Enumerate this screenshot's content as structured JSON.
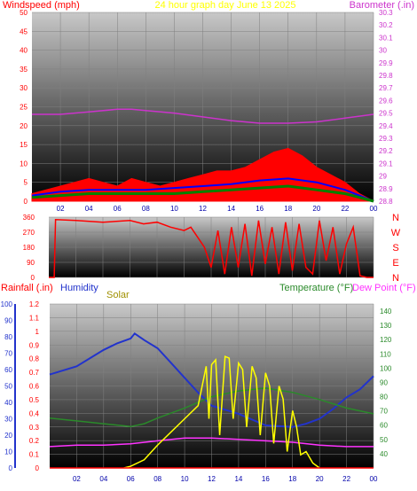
{
  "header": {
    "left_label": "Windspeed (mph)",
    "title": "24 hour graph day   June 13 2025",
    "right_label": "Barometer (.in)"
  },
  "direction_labels": [
    "N",
    "W",
    "S",
    "E",
    "N"
  ],
  "bottom_header": {
    "rainfall": "Rainfall (.in)",
    "humidity": "Humidity",
    "solar": "Solar",
    "temperature": "Temperature (°F)",
    "dewpoint": "Dew Point (°F)"
  },
  "colors": {
    "windspeed": "#ff0000",
    "gust_avg": "#0000ff",
    "wind_avg": "#008000",
    "barometer": "#cc33cc",
    "direction": "#ff0000",
    "humidity": "#2233cc",
    "solar": "#ffff00",
    "temperature": "#2a8a2a",
    "dewpoint": "#ff33ff",
    "rainfall": "#ff0000"
  },
  "chart_data": [
    {
      "type": "line",
      "name": "windspeed-barometer",
      "x_ticks": [
        "02",
        "04",
        "06",
        "08",
        "10",
        "12",
        "14",
        "16",
        "18",
        "20",
        "22",
        "00"
      ],
      "xlim": [
        0,
        24
      ],
      "ylim_left": [
        0,
        50
      ],
      "y_ticks_left": [
        0,
        5,
        10,
        15,
        20,
        25,
        30,
        35,
        40,
        45,
        50
      ],
      "ylim_right": [
        28.8,
        30.3
      ],
      "y_ticks_right": [
        "28.8",
        "28.9",
        "29",
        "29.1",
        "29.2",
        "29.3",
        "29.4",
        "29.5",
        "29.6",
        "29.7",
        "29.8",
        "29.9",
        "30",
        "30.1",
        "30.2",
        "30.3"
      ],
      "series": [
        {
          "key": "barometer",
          "axis": "right",
          "x": [
            0,
            2,
            4,
            6,
            7,
            8,
            10,
            12,
            14,
            16,
            18,
            20,
            22,
            24
          ],
          "values": [
            29.49,
            29.49,
            29.51,
            29.53,
            29.53,
            29.52,
            29.5,
            29.47,
            29.44,
            29.42,
            29.42,
            29.43,
            29.46,
            29.49
          ]
        },
        {
          "key": "windspeed",
          "axis": "left",
          "x": [
            0,
            1,
            2,
            3,
            4,
            5,
            6,
            7,
            8,
            9,
            10,
            11,
            12,
            13,
            14,
            15,
            16,
            17,
            18,
            19,
            20,
            21,
            22,
            23,
            24
          ],
          "values": [
            2,
            3,
            4,
            5,
            6,
            5,
            4,
            6,
            5,
            4,
            5,
            6,
            7,
            8,
            8,
            9,
            11,
            13,
            14,
            12,
            9,
            7,
            5,
            2,
            0
          ]
        },
        {
          "key": "gust_avg",
          "axis": "left",
          "x": [
            0,
            2,
            4,
            6,
            8,
            10,
            12,
            14,
            16,
            18,
            20,
            22,
            23,
            24
          ],
          "values": [
            1.5,
            2.5,
            3,
            3,
            3,
            3.5,
            4,
            4.5,
            5.5,
            6,
            5,
            3,
            1.5,
            0
          ]
        },
        {
          "key": "wind_avg",
          "axis": "left",
          "x": [
            0,
            2,
            4,
            6,
            8,
            10,
            12,
            14,
            16,
            18,
            20,
            22,
            23,
            24
          ],
          "values": [
            1,
            1.5,
            2,
            2,
            2,
            2,
            2.5,
            3,
            3.5,
            4,
            3,
            2,
            1,
            0
          ]
        }
      ]
    },
    {
      "type": "line",
      "name": "wind-direction",
      "x_ticks": [
        "02",
        "04",
        "06",
        "08",
        "10",
        "12",
        "14",
        "16",
        "18",
        "20",
        "22",
        "00"
      ],
      "xlim": [
        0,
        24
      ],
      "ylim": [
        0,
        360
      ],
      "y_ticks": [
        0,
        90,
        180,
        270,
        360
      ],
      "series": [
        {
          "key": "direction",
          "x": [
            0,
            0.4,
            0.5,
            2,
            4,
            6,
            7,
            8,
            9,
            10,
            10.5,
            11,
            11.5,
            12,
            12.5,
            13,
            13.5,
            14,
            14.5,
            15,
            15.5,
            16,
            16.5,
            17,
            17.5,
            18,
            18.5,
            19,
            19.5,
            20,
            20.5,
            21,
            21.5,
            22,
            22.5,
            23,
            23.5,
            24
          ],
          "values": [
            0,
            0,
            345,
            340,
            330,
            340,
            320,
            330,
            300,
            280,
            300,
            240,
            180,
            60,
            280,
            20,
            300,
            60,
            320,
            10,
            340,
            80,
            300,
            20,
            330,
            40,
            320,
            60,
            20,
            340,
            100,
            300,
            20,
            200,
            300,
            10,
            0,
            0
          ]
        }
      ]
    },
    {
      "type": "line",
      "name": "rain-humidity-solar-temp",
      "x_ticks": [
        "02",
        "04",
        "06",
        "08",
        "10",
        "12",
        "14",
        "16",
        "18",
        "20",
        "22",
        "00"
      ],
      "xlim": [
        0,
        24
      ],
      "ylim_rain": [
        0,
        1.2
      ],
      "y_ticks_rain": [
        "0",
        "0.1",
        "0.2",
        "0.3",
        "0.4",
        "0.5",
        "0.6",
        "0.7",
        "0.8",
        "0.9",
        "1",
        "1.1",
        "1.2"
      ],
      "ylim_humidity": [
        0,
        100
      ],
      "y_ticks_humidity": [
        0,
        10,
        20,
        30,
        40,
        50,
        60,
        70,
        80,
        90,
        100
      ],
      "ylim_temp": [
        30,
        145
      ],
      "y_ticks_temp": [
        40,
        50,
        60,
        70,
        80,
        90,
        100,
        110,
        120,
        130,
        140
      ],
      "series": [
        {
          "key": "humidity",
          "axis": "humidity",
          "x": [
            0,
            2,
            4,
            5,
            6,
            6.3,
            7,
            8,
            9,
            10,
            11,
            12,
            14,
            16,
            18,
            19,
            20,
            21,
            22,
            23,
            24
          ],
          "values": [
            57,
            62,
            72,
            76,
            79,
            82,
            78,
            73,
            64,
            55,
            46,
            38,
            33,
            26,
            25,
            27,
            30,
            36,
            43,
            48,
            56
          ]
        },
        {
          "key": "temperature",
          "axis": "temp",
          "x": [
            0,
            2,
            4,
            6,
            7,
            8,
            10,
            12,
            14,
            16,
            18,
            20,
            22,
            24
          ],
          "values": [
            65,
            63,
            61,
            59,
            61,
            65,
            72,
            80,
            84,
            86,
            83,
            78,
            72,
            68
          ]
        },
        {
          "key": "dewpoint",
          "axis": "temp",
          "x": [
            0,
            2,
            4,
            6,
            8,
            10,
            12,
            14,
            16,
            18,
            20,
            22,
            24
          ],
          "values": [
            45,
            46,
            46,
            47,
            49,
            51,
            51,
            50,
            49,
            48,
            46,
            45,
            45
          ]
        },
        {
          "key": "solar",
          "axis": "humidity",
          "x": [
            5.5,
            6,
            7,
            8,
            9,
            10,
            11,
            11.6,
            11.8,
            12,
            12.3,
            12.6,
            13,
            13.3,
            13.6,
            14,
            14.3,
            14.6,
            15,
            15.3,
            15.6,
            16,
            16.3,
            16.6,
            17,
            17.3,
            17.6,
            18,
            18.3,
            18.6,
            19,
            19.5,
            20
          ],
          "values": [
            0,
            1,
            5,
            14,
            22,
            30,
            38,
            62,
            30,
            63,
            66,
            20,
            68,
            67,
            30,
            64,
            60,
            25,
            62,
            55,
            20,
            58,
            50,
            15,
            50,
            42,
            10,
            35,
            25,
            8,
            10,
            3,
            0
          ]
        },
        {
          "key": "rainfall",
          "axis": "rain",
          "x": [
            0,
            24
          ],
          "values": [
            0,
            0
          ]
        }
      ]
    }
  ]
}
